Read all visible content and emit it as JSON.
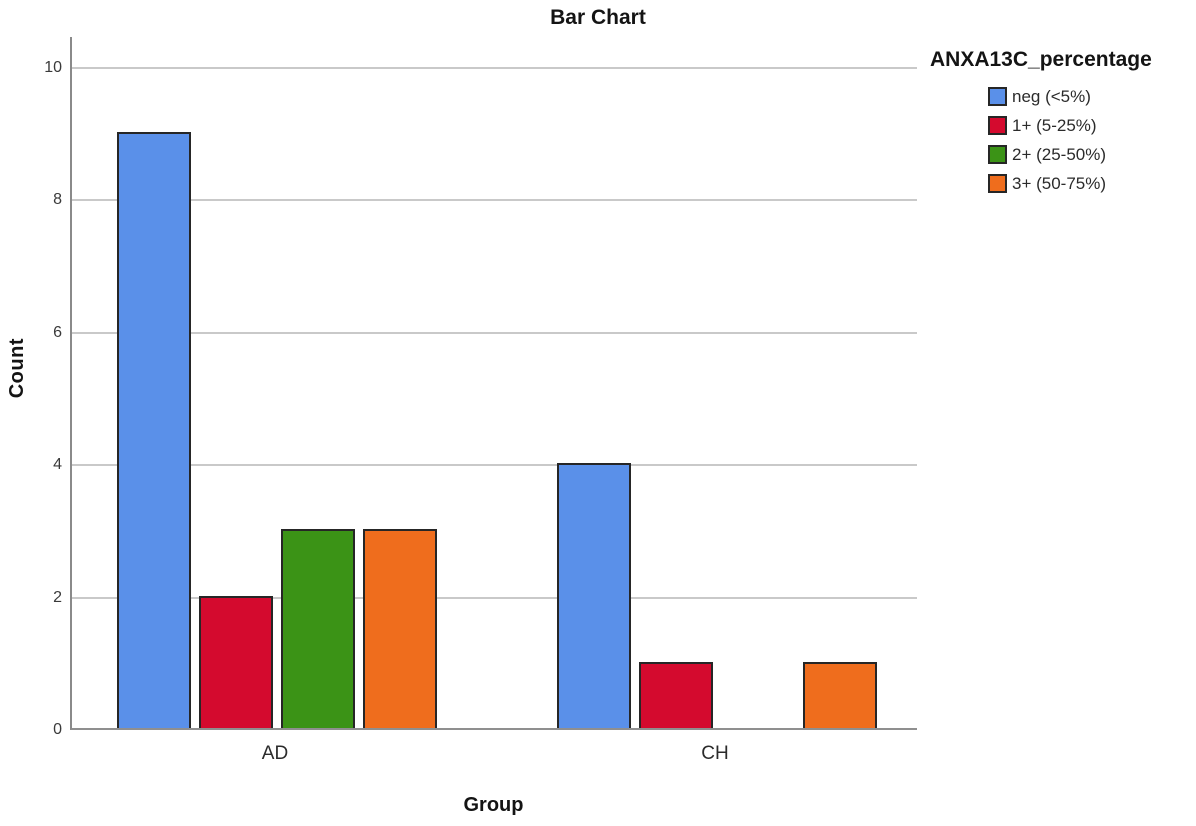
{
  "title": "Bar Chart",
  "chart_data": {
    "type": "bar",
    "title": "Bar Chart",
    "xlabel": "Group",
    "ylabel": "Count",
    "categories": [
      "AD",
      "CH"
    ],
    "series": [
      {
        "name": "neg (<5%)",
        "color": "#5A90E9",
        "values": [
          9,
          4
        ]
      },
      {
        "name": "1+ (5-25%)",
        "color": "#D40A2E",
        "values": [
          2,
          1
        ]
      },
      {
        "name": "2+ (25-50%)",
        "color": "#3B9316",
        "values": [
          3,
          0
        ]
      },
      {
        "name": "3+ (50-75%)",
        "color": "#EF6D1D",
        "values": [
          3,
          1
        ]
      }
    ],
    "legend_title": "ANXA13C_percentage",
    "legend_position": "top-right",
    "ylim": [
      0,
      10
    ],
    "yticks": [
      0,
      2,
      4,
      6,
      8,
      10
    ],
    "grid": true,
    "axis_color": "#8a8a8a",
    "gridline_color": "#c9c9c9",
    "bar_outline_color": "#262626"
  }
}
